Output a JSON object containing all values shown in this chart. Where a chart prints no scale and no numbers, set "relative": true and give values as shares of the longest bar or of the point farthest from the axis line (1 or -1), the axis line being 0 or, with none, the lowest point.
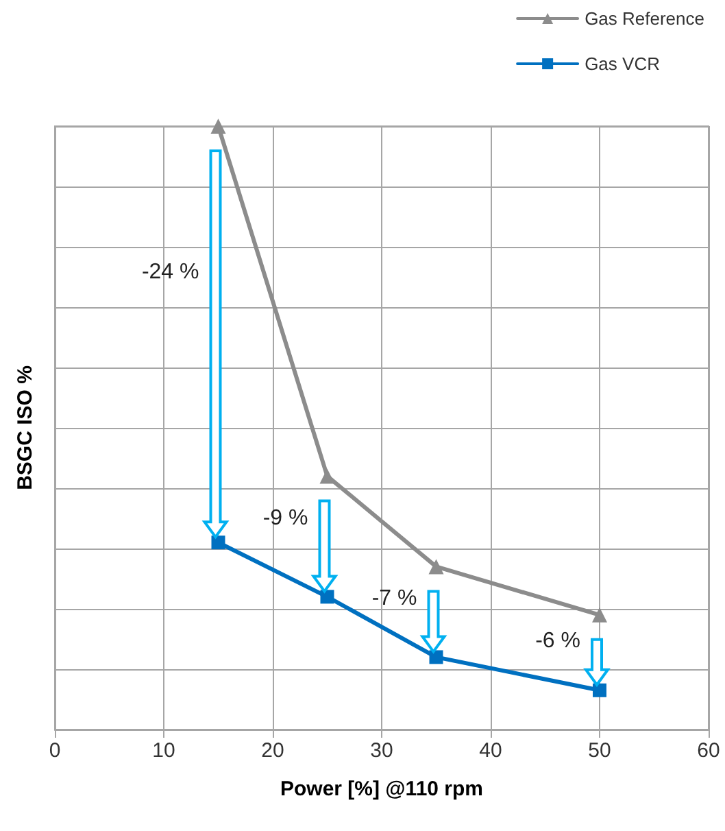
{
  "chart_data": {
    "type": "line",
    "relative": true,
    "xlabel": "Power [%] @110 rpm",
    "ylabel": "BSGC ISO %",
    "x": [
      15,
      25,
      35,
      50
    ],
    "xlim": [
      0,
      60
    ],
    "xticks": [
      0,
      10,
      20,
      30,
      40,
      50,
      60
    ],
    "series": [
      {
        "name": "Gas Reference",
        "color": "#8c8c8c",
        "marker": "triangle",
        "values": [
          1,
          0.42,
          0.27,
          0.19
        ]
      },
      {
        "name": "Gas VCR",
        "color": "#0070c0",
        "marker": "square",
        "values": [
          0.31,
          0.22,
          0.12,
          0.065
        ]
      }
    ],
    "annotations": [
      "-24 %",
      "-9 %",
      "-7 %",
      "-6 %"
    ],
    "grid": true,
    "legend": "top right"
  }
}
